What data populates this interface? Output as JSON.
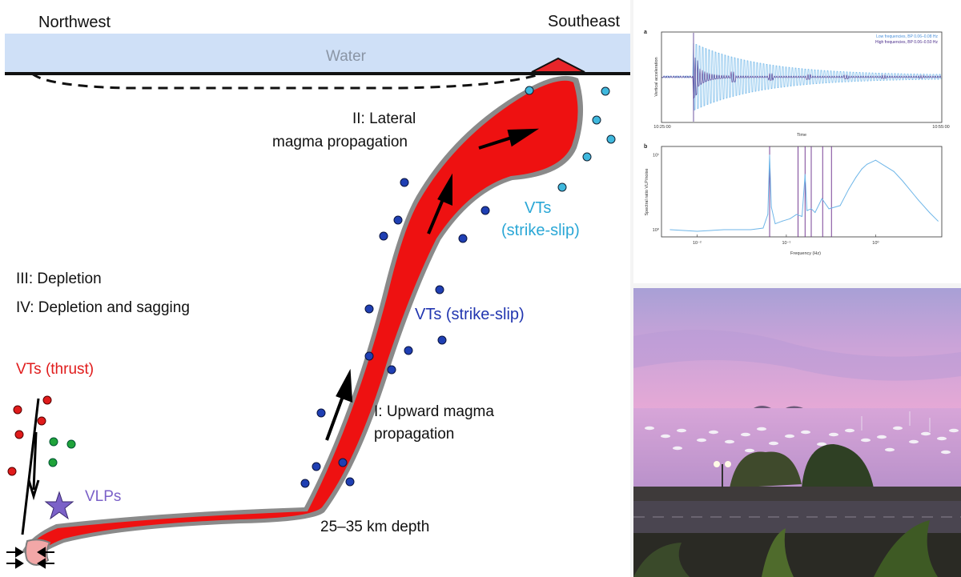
{
  "diagram": {
    "northwest": "Northwest",
    "southeast": "Southeast",
    "water": "Water",
    "lateral_line1": "II: Lateral",
    "lateral_line2": "magma propagation",
    "vts_cyan_line1": "VTs",
    "vts_cyan_line2": "(strike-slip)",
    "vts_blue": "VTs (strike-slip)",
    "depletion": "III: Depletion",
    "depletion_sagging": "IV: Depletion and sagging",
    "vts_thrust": "VTs (thrust)",
    "vlps": "VLPs",
    "upward_line1": "I: Upward magma",
    "upward_line2": "propagation",
    "depth": "25–35 km depth",
    "colors": {
      "water": "#cfe0f7",
      "magma": "#ee1111",
      "magma_outline": "#7d7d7d",
      "vt_cyan": "#3fb8dd",
      "vt_blue": "#1f3fb3",
      "vt_thrust": "#e01b1b",
      "vt_green": "#1fa33a",
      "vlp": "#7b61c8"
    }
  },
  "chart_data": [
    {
      "type": "line",
      "panel_label": "a",
      "ylabel": "Vertical acceleration",
      "xlabel": "Time",
      "x_tick_labels": [
        "10:25:00",
        "10:55:00"
      ],
      "series": [
        {
          "name": "Low frequencies, BP 0.06–0.08 Hz",
          "color": "#6fb6e8"
        },
        {
          "name": "High frequencies, BP 0.06–0.50 Hz",
          "color": "#4a2c8a"
        }
      ]
    },
    {
      "type": "line",
      "panel_label": "b",
      "ylabel": "Spectral ratio VLP/noise",
      "xlabel": "Frequency (Hz)",
      "x_scale": "log",
      "y_scale": "log",
      "x_tick_labels": [
        "10⁻²",
        "10⁻¹",
        "10⁰"
      ],
      "y_tick_labels": [
        "10¹",
        "10⁰"
      ],
      "peak_frequencies_hz": [
        0.065,
        0.135,
        0.162,
        0.19,
        0.255,
        0.32
      ],
      "series": [
        {
          "color": "#6fb6e8",
          "x": [
            0.005,
            0.01,
            0.02,
            0.04,
            0.055,
            0.062,
            0.065,
            0.068,
            0.075,
            0.09,
            0.11,
            0.13,
            0.15,
            0.162,
            0.17,
            0.19,
            0.21,
            0.25,
            0.3,
            0.4,
            0.5,
            0.6,
            0.7,
            0.8,
            1.0,
            1.3,
            1.6,
            2.0,
            3.0,
            4.0,
            5.0
          ],
          "y": [
            1.0,
            0.95,
            1.0,
            1.0,
            1.05,
            1.6,
            10.0,
            2.0,
            1.2,
            1.3,
            1.4,
            1.6,
            1.5,
            5.5,
            1.8,
            1.9,
            1.7,
            2.6,
            1.9,
            2.1,
            3.5,
            5.0,
            6.5,
            7.5,
            8.5,
            7.0,
            6.0,
            4.5,
            2.5,
            1.7,
            1.3
          ]
        }
      ]
    }
  ]
}
